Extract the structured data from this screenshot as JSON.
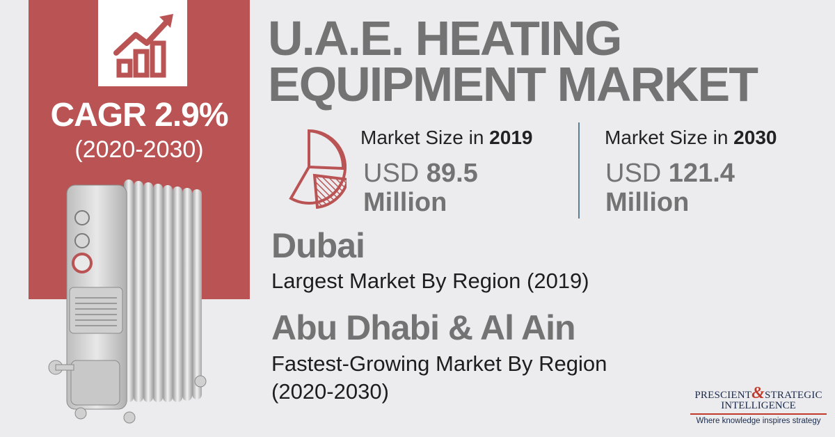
{
  "title": "U.A.E. HEATING EQUIPMENT MARKET",
  "cagr": {
    "label": "CAGR 2.9%",
    "period": "(2020-2030)"
  },
  "market_size": [
    {
      "label_prefix": "Market Size in ",
      "year": "2019",
      "currency": "USD",
      "value": "89.5",
      "unit": "Million"
    },
    {
      "label_prefix": "Market Size in ",
      "year": "2030",
      "currency": "USD",
      "value": "121.4",
      "unit": "Million"
    }
  ],
  "regions": [
    {
      "name": "Dubai",
      "description": "Largest Market By Region (2019)"
    },
    {
      "name": "Abu Dhabi & Al Ain",
      "description_line1": "Fastest-Growing Market By Region",
      "description_line2": "(2020-2030)"
    }
  ],
  "logo": {
    "word1": "PRESCIENT",
    "amp": "&",
    "word2": "STRATEGIC",
    "word3": "INTELLIGENCE",
    "tagline": "Where knowledge inspires strategy"
  },
  "colors": {
    "accent_red": "#b95354",
    "title_gray": "#737373",
    "background": "#ececee",
    "divider_blue": "#5a7f95"
  },
  "icons": [
    "growth-chart-icon",
    "pie-chart-icon",
    "oil-heater-image"
  ]
}
